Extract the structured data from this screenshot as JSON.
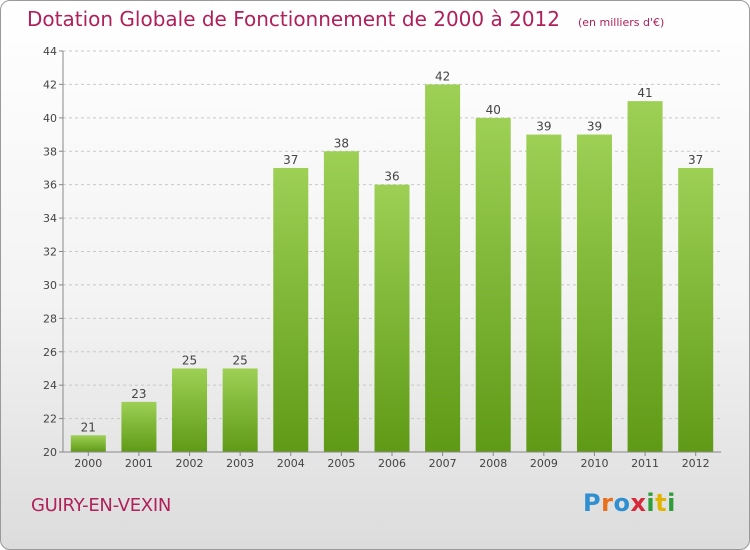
{
  "header": {
    "title": "Dotation Globale de Fonctionnement de 2000 à 2012",
    "subtitle": "(en milliers d'€)"
  },
  "footer": {
    "commune": "GUIRY-EN-VEXIN",
    "logo": "Proxiti"
  },
  "colors": {
    "accent": "#b0205a",
    "bar_top": "#9dd055",
    "bar_bottom": "#5f9a16"
  },
  "chart_data": {
    "type": "bar",
    "categories": [
      "2000",
      "2001",
      "2002",
      "2003",
      "2004",
      "2005",
      "2006",
      "2007",
      "2008",
      "2009",
      "2010",
      "2011",
      "2012"
    ],
    "values": [
      21,
      23,
      25,
      25,
      37,
      38,
      36,
      42,
      40,
      39,
      39,
      41,
      37
    ],
    "data_labels": [
      "21",
      "23",
      "25",
      "25",
      "37",
      "38",
      "36",
      "42",
      "40",
      "39",
      "39",
      "41",
      "37"
    ],
    "title": "Dotation Globale de Fonctionnement de 2000 à 2012",
    "subtitle": "(en milliers d'€)",
    "xlabel": "",
    "ylabel": "",
    "ylim": [
      20,
      44
    ],
    "yticks": [
      20,
      22,
      24,
      26,
      28,
      30,
      32,
      34,
      36,
      38,
      40,
      42,
      44
    ],
    "grid": true,
    "legend": "none"
  }
}
